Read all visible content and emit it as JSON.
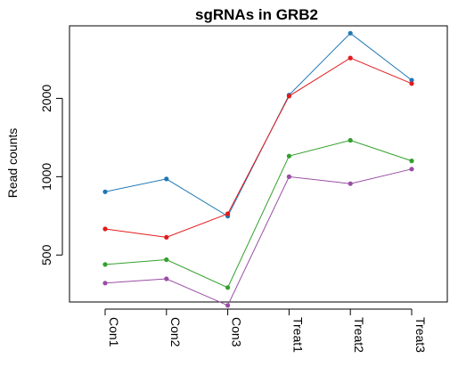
{
  "chart_data": {
    "type": "line",
    "title": "sgRNAs in GRB2",
    "xlabel": "",
    "ylabel": "Read counts",
    "y_scale": "log",
    "ylim": [
      330,
      3800
    ],
    "yticks": [
      500,
      1000,
      2000
    ],
    "ytick_labels": [
      "500",
      "1000",
      "2000"
    ],
    "grid": false,
    "legend": "none",
    "categories": [
      "Con1",
      "Con2",
      "Con3",
      "Treat1",
      "Treat2",
      "Treat3"
    ],
    "series": [
      {
        "color": "#1f78b4",
        "values": [
          875,
          980,
          705,
          2060,
          3560,
          2350
        ]
      },
      {
        "color": "#e31a1c",
        "values": [
          630,
          585,
          720,
          2040,
          2860,
          2280
        ]
      },
      {
        "color": "#33a02c",
        "values": [
          460,
          480,
          375,
          1200,
          1380,
          1150
        ]
      },
      {
        "color": "#984ea3",
        "values": [
          390,
          405,
          320,
          1000,
          940,
          1070
        ]
      }
    ]
  }
}
